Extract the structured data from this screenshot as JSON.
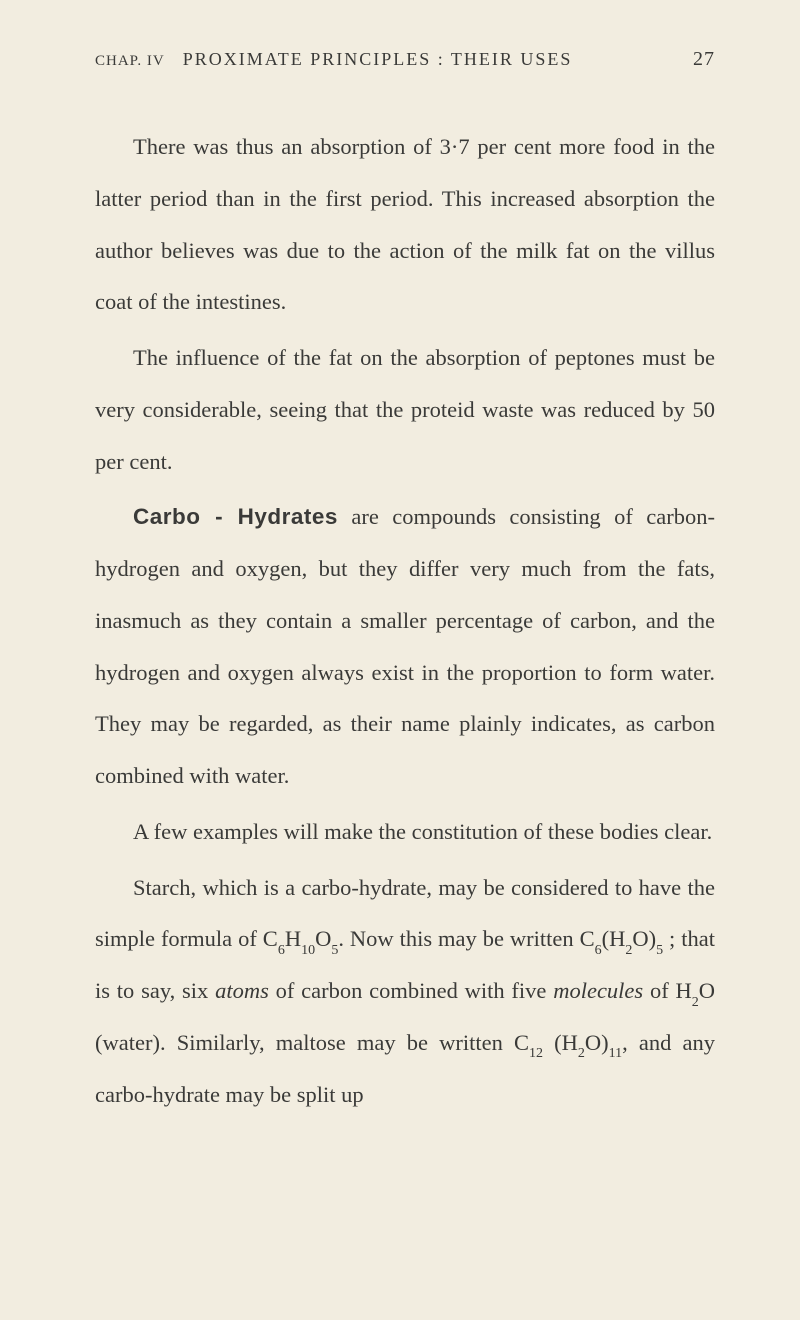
{
  "header": {
    "chapter": "CHAP. IV",
    "title": "PROXIMATE PRINCIPLES : THEIR USES",
    "page": "27"
  },
  "paragraphs": {
    "p1": "There was thus an absorption of 3·7 per cent more food in the latter period than in the first period. This increased absorption the author believes was due to the action of the milk fat on the villus coat of the intestines.",
    "p2": "The influence of the fat on the absorption of peptones must be very considerable, seeing that the proteid waste was reduced by 50 per cent.",
    "p3_bold": "Carbo - Hydrates",
    "p3_rest": " are compounds consisting of carbon-hydrogen and oxygen, but they differ very much from the fats, inasmuch as they contain a smaller percentage of carbon, and the hydrogen and oxygen always exist in the proportion to form water. They may be regarded, as their name plainly indicates, as carbon combined with water.",
    "p4": "A few examples will make the constitution of these bodies clear.",
    "p5_a": "Starch, which is a carbo-hydrate, may be con­sidered to have the simple formula of C",
    "p5_b": "H",
    "p5_c": "O",
    "p5_d": ". Now this may be written C",
    "p5_e": "(H",
    "p5_f": "O)",
    "p5_g": " ; that is to say, six ",
    "p5_atoms": "atoms",
    "p5_h": " of carbon combined with five ",
    "p5_molecules": "molecules",
    "p5_i": " of H",
    "p5_j": "O (water). Similarly, maltose may be written C",
    "p5_k": " (H",
    "p5_l": "O)",
    "p5_m": ", and any carbo-hydrate may be split up",
    "sub_6": "6",
    "sub_10": "10",
    "sub_5": "5",
    "sub_2": "2",
    "sub_12": "12",
    "sub_11": "11"
  },
  "colors": {
    "background": "#f2ede0",
    "text": "#3a3a38"
  },
  "typography": {
    "body_fontsize": 22.5,
    "line_height": 2.3,
    "header_fontsize": 18
  }
}
